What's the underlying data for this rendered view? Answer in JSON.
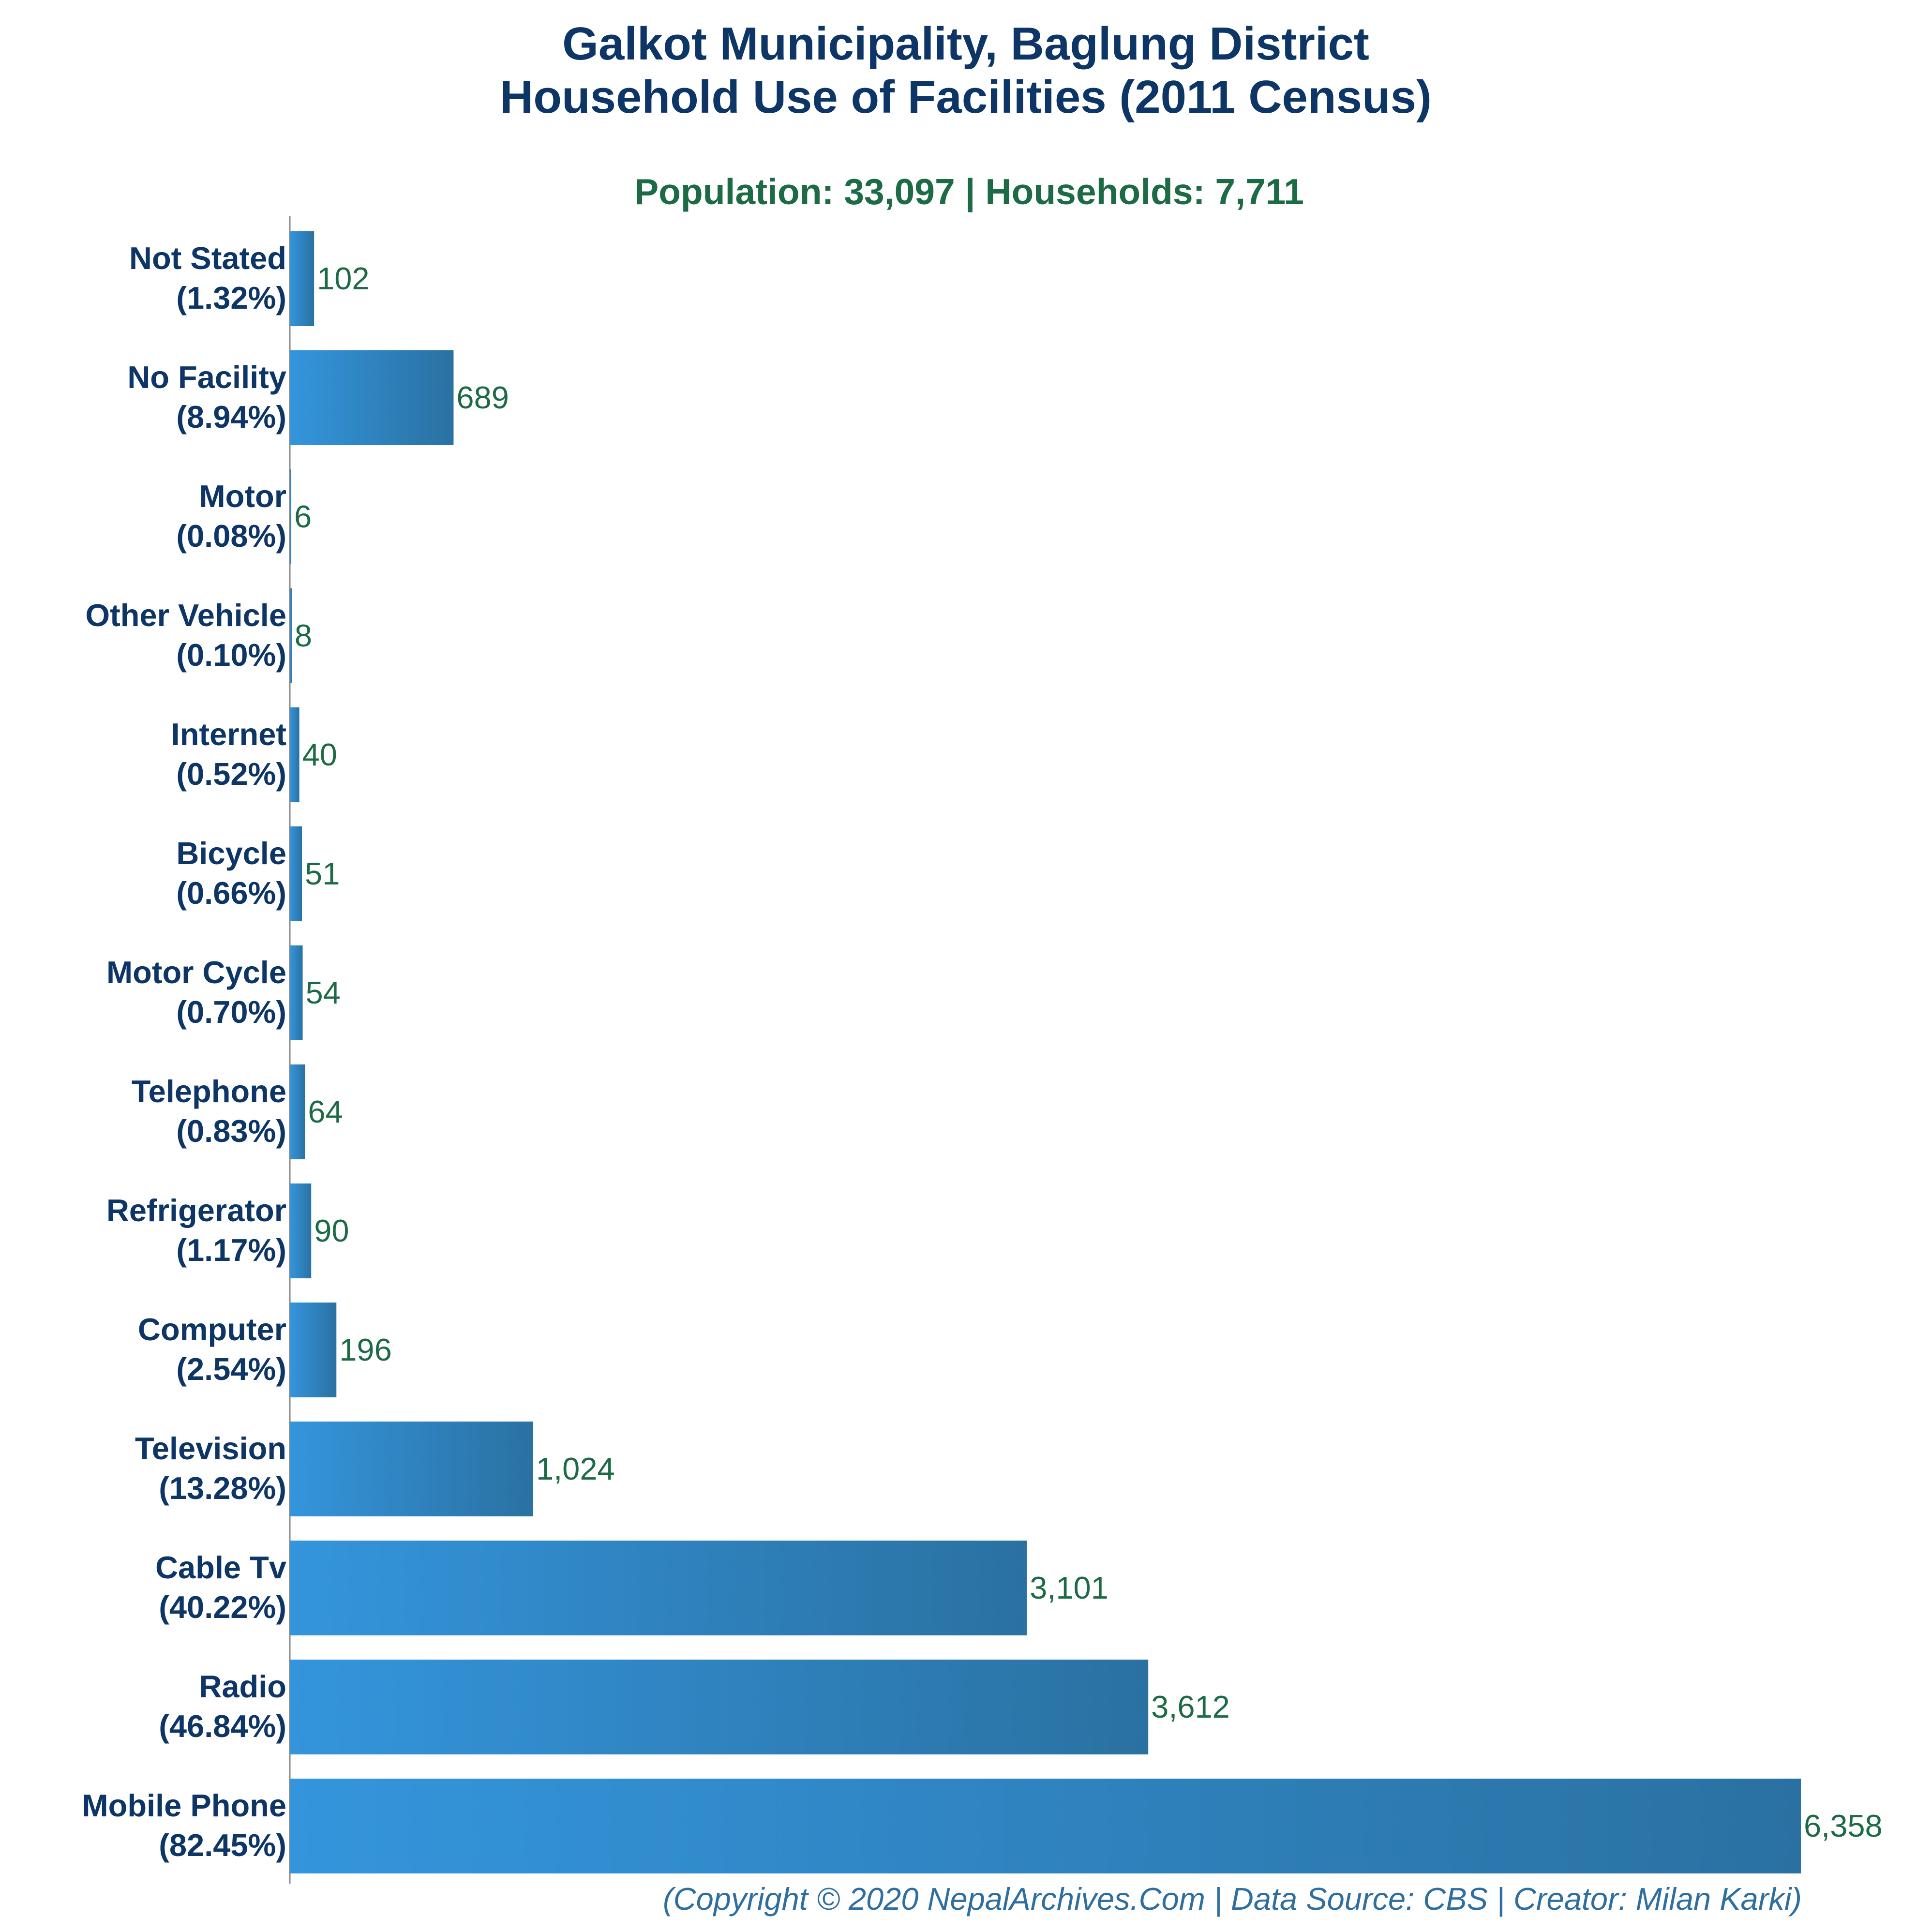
{
  "title_line1": "Galkot Municipality, Baglung District",
  "title_line2": "Household Use of Facilities (2011 Census)",
  "subtitle": "Population: 33,097 | Households: 7,711",
  "footer": "(Copyright © 2020 NepalArchives.Com | Data Source: CBS | Creator: Milan Karki)",
  "colors": {
    "bar_start": "#3495dc",
    "bar_end": "#2a71a2",
    "title": "#0d3566",
    "value_label": "#1d6b45",
    "footer": "#2f6f9f",
    "axis": "#888888"
  },
  "chart_data": {
    "type": "bar",
    "orientation": "horizontal",
    "title": "Galkot Municipality, Baglung District Household Use of Facilities (2011 Census)",
    "subtitle": "Population: 33,097 | Households: 7,711",
    "xlim": [
      0,
      6358
    ],
    "categories": [
      {
        "name": "Not Stated",
        "pct": "(1.32%)",
        "value": 102,
        "display": "102"
      },
      {
        "name": "No Facility",
        "pct": "(8.94%)",
        "value": 689,
        "display": "689"
      },
      {
        "name": "Motor",
        "pct": "(0.08%)",
        "value": 6,
        "display": "6"
      },
      {
        "name": "Other Vehicle",
        "pct": "(0.10%)",
        "value": 8,
        "display": "8"
      },
      {
        "name": "Internet",
        "pct": "(0.52%)",
        "value": 40,
        "display": "40"
      },
      {
        "name": "Bicycle",
        "pct": "(0.66%)",
        "value": 51,
        "display": "51"
      },
      {
        "name": "Motor Cycle",
        "pct": "(0.70%)",
        "value": 54,
        "display": "54"
      },
      {
        "name": "Telephone",
        "pct": "(0.83%)",
        "value": 64,
        "display": "64"
      },
      {
        "name": "Refrigerator",
        "pct": "(1.17%)",
        "value": 90,
        "display": "90"
      },
      {
        "name": "Computer",
        "pct": "(2.54%)",
        "value": 196,
        "display": "196"
      },
      {
        "name": "Television",
        "pct": "(13.28%)",
        "value": 1024,
        "display": "1,024"
      },
      {
        "name": "Cable Tv",
        "pct": "(40.22%)",
        "value": 3101,
        "display": "3,101"
      },
      {
        "name": "Radio",
        "pct": "(46.84%)",
        "value": 3612,
        "display": "3,612"
      },
      {
        "name": "Mobile Phone",
        "pct": "(82.45%)",
        "value": 6358,
        "display": "6,358"
      }
    ]
  }
}
